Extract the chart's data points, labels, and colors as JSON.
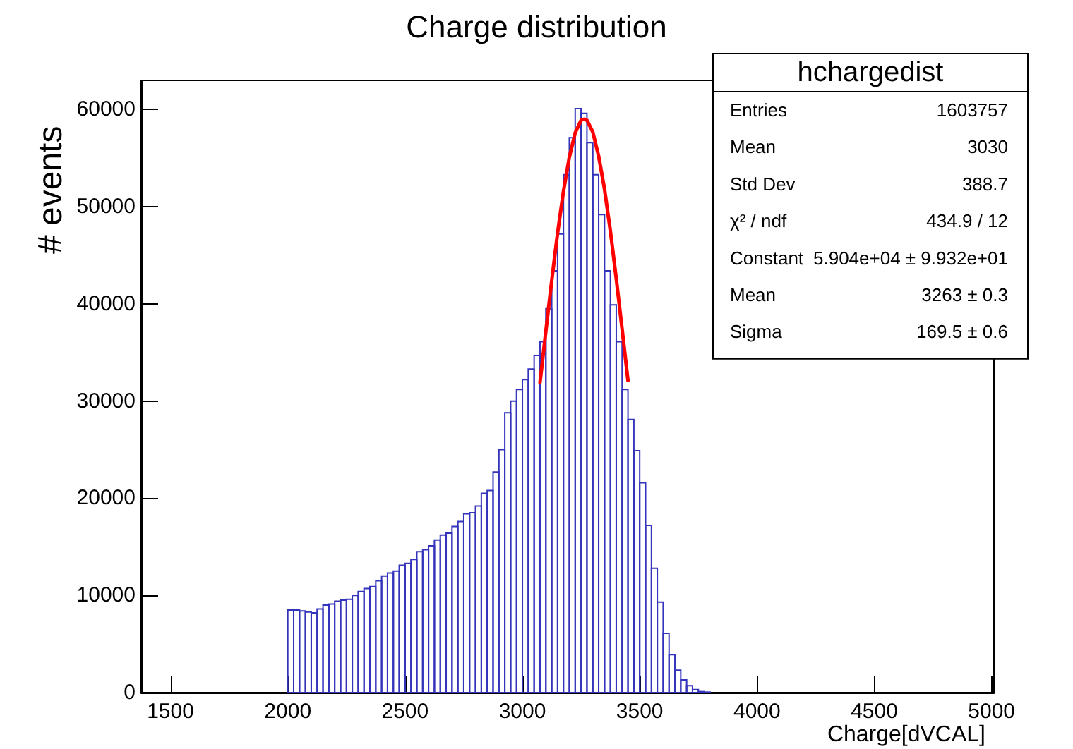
{
  "chart_data": {
    "type": "histogram",
    "title": "Charge distribution",
    "xlabel": "Charge[dVCAL]",
    "ylabel": "# events",
    "bins": [
      2000,
      2025,
      2050,
      2075,
      2100,
      2125,
      2150,
      2175,
      2200,
      2225,
      2250,
      2275,
      2300,
      2325,
      2350,
      2375,
      2400,
      2425,
      2450,
      2475,
      2500,
      2525,
      2550,
      2575,
      2600,
      2625,
      2650,
      2675,
      2700,
      2725,
      2750,
      2775,
      2800,
      2825,
      2850,
      2875,
      2900,
      2925,
      2950,
      2975,
      3000,
      3025,
      3050,
      3075,
      3100,
      3125,
      3150,
      3175,
      3200,
      3225,
      3250,
      3275,
      3300,
      3325,
      3350,
      3375,
      3400,
      3425,
      3450,
      3475,
      3500,
      3525,
      3550,
      3575,
      3600,
      3625,
      3650,
      3675,
      3700,
      3725,
      3750,
      3775,
      3800
    ],
    "series": [
      {
        "color": "#3333bb",
        "values": [
          8500,
          8500,
          8400,
          8300,
          8200,
          8600,
          9000,
          9100,
          9400,
          9500,
          9600,
          10000,
          10400,
          10700,
          10900,
          11500,
          12000,
          12300,
          12500,
          13100,
          13300,
          13700,
          14500,
          14700,
          15100,
          15700,
          16200,
          16400,
          17100,
          17600,
          18400,
          18500,
          19200,
          20500,
          20800,
          22700,
          25000,
          28800,
          30000,
          31200,
          32200,
          33300,
          34700,
          36100,
          39500,
          43400,
          47200,
          53300,
          57100,
          60100,
          59600,
          56600,
          53300,
          49200,
          43400,
          39900,
          36100,
          31200,
          28100,
          24900,
          21600,
          17200,
          12800,
          9300,
          6100,
          3900,
          2300,
          1300,
          700,
          300,
          100,
          50
        ]
      },
      {
        "type": "line",
        "color": "#ff0000",
        "x": [
          3075,
          3100,
          3125,
          3150,
          3175,
          3200,
          3225,
          3250,
          3263,
          3275,
          3300,
          3325,
          3350,
          3375,
          3400,
          3425,
          3450
        ],
        "values": [
          31900,
          37200,
          42400,
          47300,
          51600,
          55100,
          57600,
          58900,
          59000,
          58900,
          57700,
          55200,
          51800,
          47500,
          42600,
          37400,
          32100
        ]
      }
    ],
    "xlim": [
      1375,
      5010
    ],
    "xticks": [
      1500,
      2000,
      2500,
      3000,
      3500,
      4000,
      4500,
      5000
    ],
    "ylim": [
      0,
      63000
    ],
    "yticks": [
      0,
      10000,
      20000,
      30000,
      40000,
      50000,
      60000
    ],
    "annotations": [
      "hchargedist",
      "Entries",
      "1603757",
      "Mean",
      "3030",
      "Std Dev",
      "388.7",
      "χ² / ndf",
      "434.9 / 12",
      "Constant",
      "5.904e+04 ± 9.932e+01",
      "Mean",
      "3263 ± 0.3",
      "Sigma",
      "169.5 ± 0.6"
    ]
  }
}
